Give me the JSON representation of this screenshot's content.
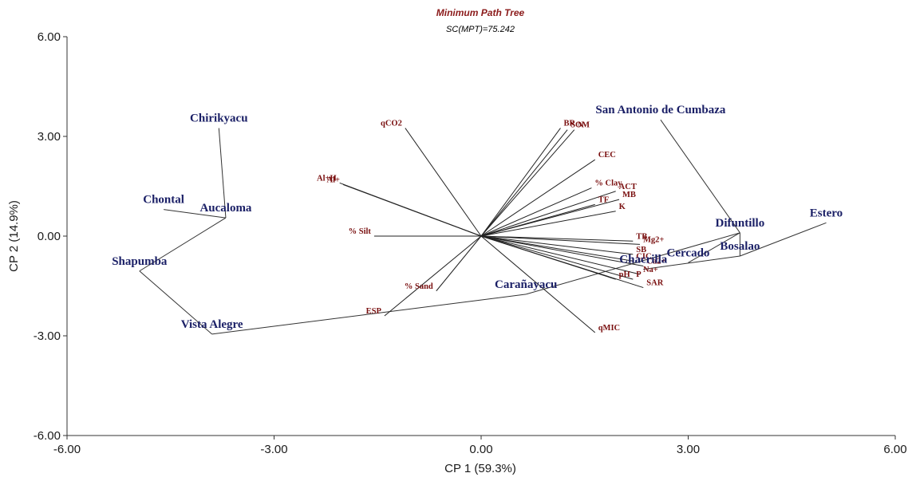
{
  "chart_data": {
    "type": "scatter",
    "title": "Minimum Path Tree",
    "subtitle": "SC(MPT)=75.242",
    "xlabel": "CP 1 (59.3%)",
    "ylabel": "CP 2 (14.9%)",
    "xlim": [
      -6,
      6
    ],
    "ylim": [
      -6,
      6
    ],
    "xticks": [
      "-6.00",
      "-3.00",
      "0.00",
      "3.00",
      "6.00"
    ],
    "yticks": [
      "6.00",
      "3.00",
      "0.00",
      "-3.00",
      "-6.00"
    ],
    "sites": [
      {
        "name": "Chirikyacu",
        "x": -3.8,
        "y": 3.25
      },
      {
        "name": "Aucaloma",
        "x": -3.7,
        "y": 0.55
      },
      {
        "name": "Chontal",
        "x": -4.6,
        "y": 0.8
      },
      {
        "name": "Shapumba",
        "x": -4.95,
        "y": -1.05
      },
      {
        "name": "Vista Alegre",
        "x": -3.9,
        "y": -2.95
      },
      {
        "name": "Carañayacu",
        "x": 0.65,
        "y": -1.75
      },
      {
        "name": "Chacrilla",
        "x": 2.35,
        "y": -1.0
      },
      {
        "name": "Cercado",
        "x": 3.0,
        "y": -0.8
      },
      {
        "name": "San Antonio de Cumbaza",
        "x": 2.6,
        "y": 3.5
      },
      {
        "name": "Difuntillo",
        "x": 3.75,
        "y": 0.1
      },
      {
        "name": "Bosalao",
        "x": 3.75,
        "y": -0.6
      },
      {
        "name": "Estero",
        "x": 5.0,
        "y": 0.4
      }
    ],
    "tree_edges": [
      [
        "Chirikyacu",
        "Aucaloma"
      ],
      [
        "Chontal",
        "Aucaloma"
      ],
      [
        "Aucaloma",
        "Shapumba"
      ],
      [
        "Shapumba",
        "Vista Alegre"
      ],
      [
        "Vista Alegre",
        "Carañayacu"
      ],
      [
        "Carañayacu",
        "Difuntillo"
      ],
      [
        "Chacrilla",
        "Bosalao"
      ],
      [
        "San Antonio de Cumbaza",
        "Difuntillo"
      ],
      [
        "Difuntillo",
        "Bosalao"
      ],
      [
        "Difuntillo",
        "Cercado"
      ],
      [
        "Bosalao",
        "Estero"
      ]
    ],
    "variables": [
      {
        "name": "qCO2",
        "x": -1.1,
        "y": 3.25
      },
      {
        "name": "BR",
        "x": 1.15,
        "y": 3.25
      },
      {
        "name": "SOM",
        "x": 1.25,
        "y": 3.2
      },
      {
        "name": "N",
        "x": 1.35,
        "y": 3.2
      },
      {
        "name": "CEC",
        "x": 1.65,
        "y": 2.3
      },
      {
        "name": "% Clay",
        "x": 1.6,
        "y": 1.45
      },
      {
        "name": "ACT",
        "x": 1.95,
        "y": 1.35
      },
      {
        "name": "MB",
        "x": 2.0,
        "y": 1.1
      },
      {
        "name": "TF",
        "x": 1.65,
        "y": 0.95
      },
      {
        "name": "K",
        "x": 1.95,
        "y": 0.75
      },
      {
        "name": "Al+H",
        "x": -2.05,
        "y": 1.6
      },
      {
        "name": "Al+",
        "x": -2.0,
        "y": 1.55
      },
      {
        "name": "% Silt",
        "x": -1.55,
        "y": 0.0
      },
      {
        "name": "TB",
        "x": 2.2,
        "y": -0.15
      },
      {
        "name": "Mg2+",
        "x": 2.3,
        "y": -0.25
      },
      {
        "name": "SB",
        "x": 2.2,
        "y": -0.55
      },
      {
        "name": "CIC",
        "x": 2.2,
        "y": -0.75
      },
      {
        "name": "Ca2+",
        "x": 2.35,
        "y": -0.9
      },
      {
        "name": "Na+",
        "x": 2.3,
        "y": -1.15
      },
      {
        "name": "P",
        "x": 2.2,
        "y": -1.3
      },
      {
        "name": "pH",
        "x": 1.95,
        "y": -1.3
      },
      {
        "name": "SAR",
        "x": 2.35,
        "y": -1.55
      },
      {
        "name": "% Sand",
        "x": -0.65,
        "y": -1.65
      },
      {
        "name": "ESP",
        "x": -1.4,
        "y": -2.4
      },
      {
        "name": "qMIC",
        "x": 1.65,
        "y": -2.9
      }
    ]
  }
}
